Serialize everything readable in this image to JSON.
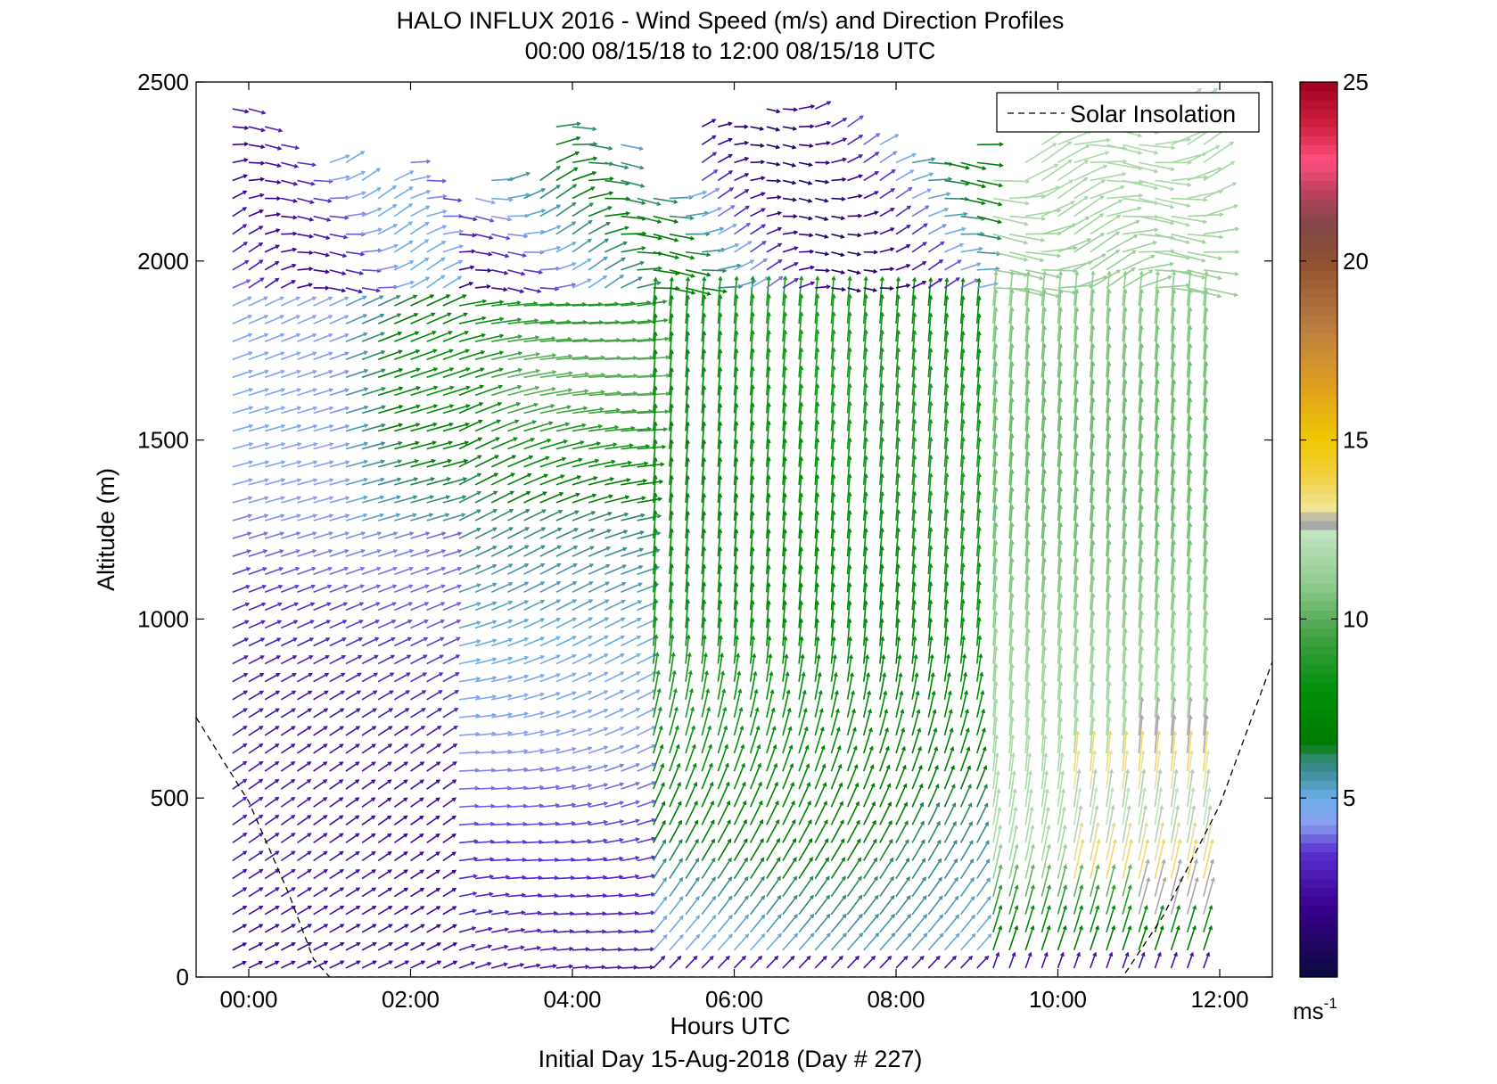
{
  "chart_data": {
    "type": "quiver",
    "title": "HALO INFLUX 2016 - Wind Speed (m/s) and Direction Profiles",
    "subtitle": "00:00 08/15/18 to 12:00 08/15/18  UTC",
    "xlabel": "Hours UTC",
    "ylabel": "Altitude (m)",
    "footer": "Initial Day 15-Aug-2018 (Day # 227)",
    "xlim": [
      -0.65,
      12.65
    ],
    "ylim": [
      0,
      2500
    ],
    "x_ticks": [
      0,
      2,
      4,
      6,
      8,
      10,
      12
    ],
    "x_tick_labels": [
      "00:00",
      "02:00",
      "04:00",
      "06:00",
      "08:00",
      "10:00",
      "12:00"
    ],
    "y_ticks": [
      0,
      500,
      1000,
      1500,
      2000,
      2500
    ],
    "y_tick_labels": [
      "0",
      "500",
      "1000",
      "1500",
      "2000",
      "2500"
    ],
    "grid": false,
    "legend": {
      "placement": "top-right",
      "entries": [
        "Solar Insolation"
      ]
    },
    "colorbar": {
      "min": 0,
      "max": 25,
      "ticks": [
        5,
        10,
        15,
        20,
        25
      ],
      "tick_labels": [
        "5",
        "10",
        "15",
        "20",
        "25"
      ],
      "unit": "ms",
      "unit_exponent": "-1",
      "colors": [
        "#0a0a3c",
        "#3a0090",
        "#5a30d0",
        "#8aa0f0",
        "#6ab0e8",
        "#3a8a90",
        "#007a00",
        "#40a040",
        "#90cc90",
        "#b8e0b8",
        "#a8a8a8",
        "#f0e080",
        "#f0c800",
        "#e0a020",
        "#c08040",
        "#905030",
        "#804040",
        "#c04060",
        "#ff5080",
        "#d02040",
        "#a00020"
      ]
    },
    "solar_insolation": {
      "x": [
        -0.65,
        0.0,
        0.5,
        0.8,
        1.0,
        10.8,
        11.3,
        12.0,
        12.65
      ],
      "y": [
        725,
        490,
        230,
        50,
        0,
        0,
        170,
        480,
        880
      ]
    },
    "profile_times": [
      -0.2,
      0.0,
      0.2,
      0.4,
      0.6,
      0.8,
      1.0,
      1.2,
      1.4,
      1.6,
      1.8,
      2.0,
      2.2,
      2.4,
      2.6,
      2.8,
      3.0,
      3.2,
      3.4,
      3.6,
      3.8,
      4.0,
      4.2,
      4.4,
      4.6,
      4.8,
      5.0,
      5.2,
      5.4,
      5.6,
      5.8,
      6.0,
      6.2,
      6.4,
      6.6,
      6.8,
      7.0,
      7.2,
      7.4,
      7.6,
      7.8,
      8.0,
      8.2,
      8.4,
      8.6,
      8.8,
      9.0,
      9.2,
      9.4,
      9.6,
      9.8,
      10.0,
      10.2,
      10.4,
      10.6,
      10.8,
      11.0,
      11.2,
      11.4,
      11.6,
      11.8
    ],
    "profile_altitudes": [
      25,
      75,
      125,
      175,
      225,
      275,
      325,
      375,
      425,
      475,
      525,
      575,
      625,
      675,
      725,
      775,
      825,
      875,
      925,
      975,
      1025,
      1075,
      1125,
      1175,
      1225,
      1275,
      1325,
      1375,
      1425,
      1475,
      1525,
      1575,
      1625,
      1675,
      1725,
      1775,
      1825,
      1875,
      1925,
      1975,
      2025,
      2075,
      2125,
      2175,
      2225,
      2275,
      2325,
      2375,
      2425,
      2475
    ],
    "profile_tops": [
      2450,
      2450,
      2400,
      2350,
      2300,
      2250,
      2280,
      2300,
      2250,
      2200,
      2250,
      2300,
      2250,
      2200,
      2150,
      2200,
      2250,
      2250,
      2200,
      2250,
      2400,
      2400,
      2350,
      2300,
      2350,
      2200,
      2200,
      2200,
      2200,
      2400,
      2400,
      2400,
      2400,
      2450,
      2450,
      2450,
      2450,
      2400,
      2400,
      2350,
      2350,
      2300,
      2300,
      2300,
      2300,
      2300,
      2350,
      2250,
      2200,
      2300,
      2350,
      2450,
      2350,
      2350,
      2450,
      2450,
      2450,
      2450,
      2450,
      2450,
      2450
    ]
  }
}
